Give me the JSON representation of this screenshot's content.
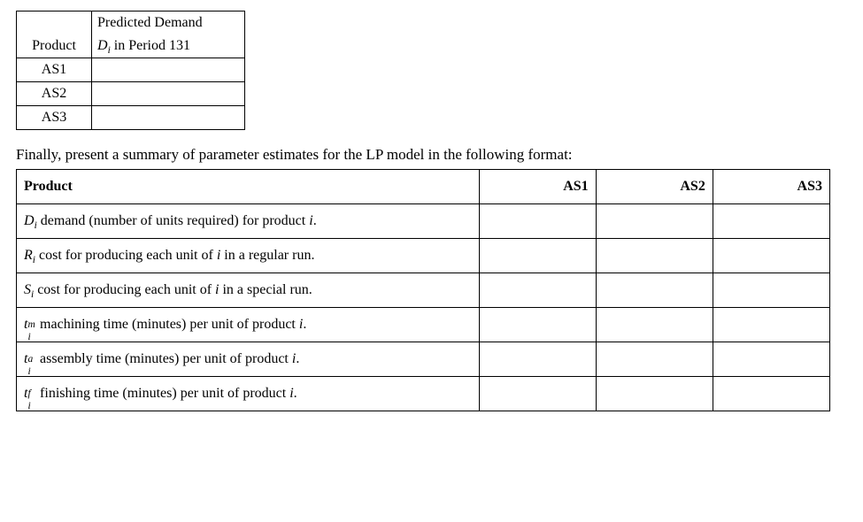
{
  "small_table": {
    "header_product": "Product",
    "header_demand_line1_prefix": "Predicted Demand",
    "header_demand_var": "D",
    "header_demand_sub": "i",
    "header_demand_suffix": " in Period 131",
    "rows": [
      "AS1",
      "AS2",
      "AS3"
    ]
  },
  "instruction_text": "Finally, present a summary of parameter estimates for the LP model in the following format:",
  "big_table": {
    "header_label": "Product",
    "columns": [
      "AS1",
      "AS2",
      "AS3"
    ],
    "rows": [
      {
        "var": "D",
        "sub": "i",
        "sup": "",
        "text": " demand (number of units required) for product ",
        "trail_var": "i"
      },
      {
        "var": "R",
        "sub": "i",
        "sup": "",
        "text": " cost for producing each unit of ",
        "trail_var": "i",
        "trail_text": " in a regular run."
      },
      {
        "var": "S",
        "sub": "i",
        "sup": "",
        "text": " cost for producing each unit of ",
        "trail_var": "i",
        "trail_text": " in a special run."
      },
      {
        "var": "t",
        "sub": "i",
        "sup": "m",
        "text": " machining time (minutes) per unit of product ",
        "trail_var": "i"
      },
      {
        "var": "t",
        "sub": "i",
        "sup": "a",
        "text": " assembly time (minutes) per unit of product ",
        "trail_var": "i"
      },
      {
        "var": "t",
        "sub": "i",
        "sup": "f",
        "text": " finishing time (minutes) per unit of product ",
        "trail_var": "i"
      }
    ]
  },
  "colors": {
    "text": "#000000",
    "background": "#ffffff",
    "border": "#000000"
  },
  "fonts": {
    "family": "Times New Roman",
    "body_size_pt": 12,
    "header_weight": "bold"
  }
}
